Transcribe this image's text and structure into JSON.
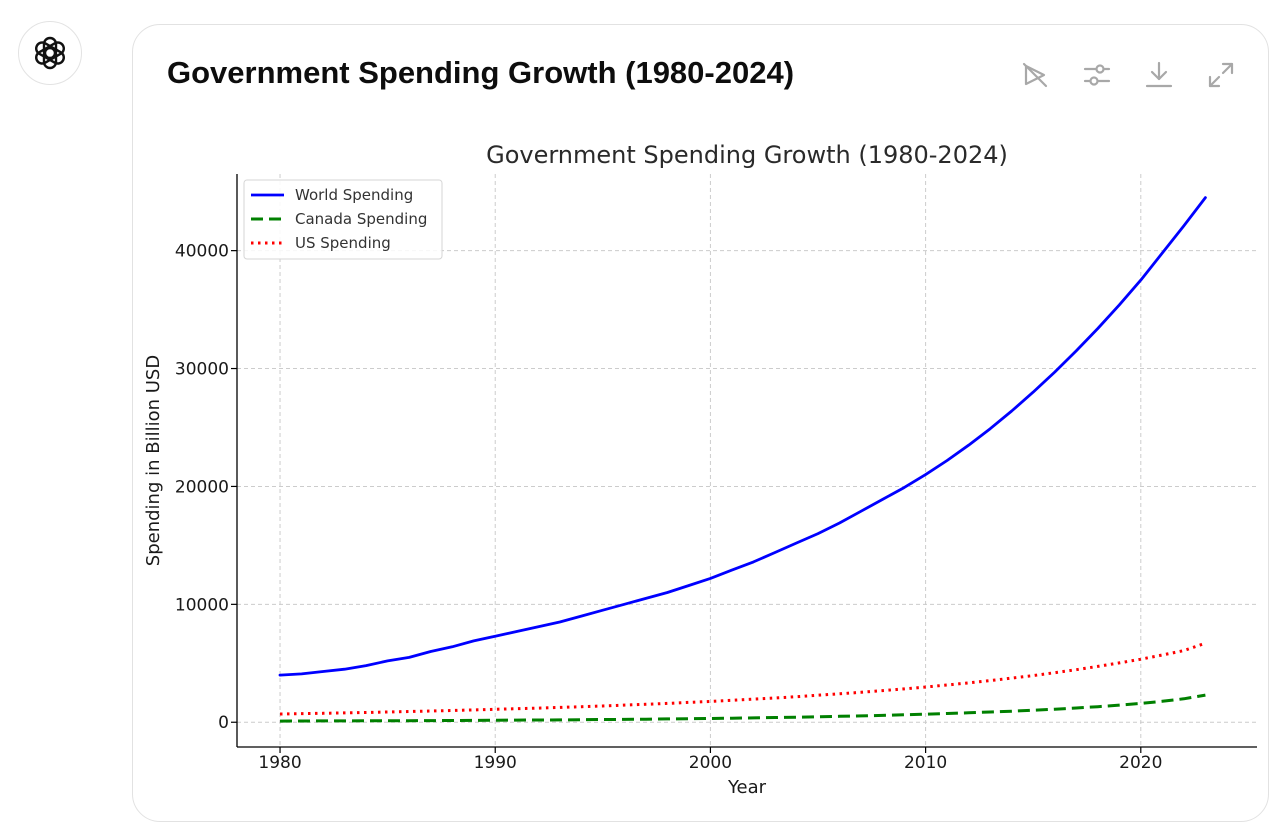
{
  "header": {
    "title": "Government Spending Growth (1980-2024)"
  },
  "toolbar": {
    "icons": [
      "unpin-icon",
      "sliders-icon",
      "download-icon",
      "expand-icon"
    ]
  },
  "colors": {
    "world": "#0000ff",
    "canada": "#008000",
    "us": "#ff0000",
    "grid": "#cccccc"
  },
  "chart_data": {
    "type": "line",
    "title": "Government Spending Growth (1980-2024)",
    "xlabel": "Year",
    "ylabel": "Spending in Billion USD",
    "xlim": [
      1978,
      2025.4
    ],
    "ylim": [
      -2100,
      46500
    ],
    "xticks": [
      1980,
      1990,
      2000,
      2010,
      2020
    ],
    "yticks": [
      0,
      10000,
      20000,
      30000,
      40000
    ],
    "grid": true,
    "legend_position": "top-left",
    "x": [
      1980,
      1981,
      1982,
      1983,
      1984,
      1985,
      1986,
      1987,
      1988,
      1989,
      1990,
      1991,
      1992,
      1993,
      1994,
      1995,
      1996,
      1997,
      1998,
      1999,
      2000,
      2001,
      2002,
      2003,
      2004,
      2005,
      2006,
      2007,
      2008,
      2009,
      2010,
      2011,
      2012,
      2013,
      2014,
      2015,
      2016,
      2017,
      2018,
      2019,
      2020,
      2021,
      2022,
      2023
    ],
    "series": [
      {
        "name": "World Spending",
        "style": "solid",
        "values": [
          4000,
          4100,
          4300,
          4500,
          4800,
          5200,
          5500,
          6000,
          6400,
          6900,
          7300,
          7700,
          8100,
          8500,
          9000,
          9500,
          10000,
          10500,
          11000,
          11600,
          12200,
          12900,
          13600,
          14400,
          15200,
          16000,
          16900,
          17900,
          18900,
          19900,
          21000,
          22200,
          23500,
          24900,
          26400,
          28000,
          29700,
          31500,
          33400,
          35400,
          37500,
          39800,
          42100,
          44500
        ]
      },
      {
        "name": "Canada Spending",
        "style": "dashed",
        "values": [
          100,
          105,
          110,
          115,
          120,
          125,
          130,
          140,
          150,
          160,
          170,
          180,
          190,
          200,
          215,
          230,
          245,
          260,
          280,
          300,
          320,
          345,
          370,
          400,
          430,
          465,
          500,
          540,
          580,
          630,
          680,
          740,
          800,
          870,
          940,
          1020,
          1110,
          1210,
          1320,
          1450,
          1600,
          1780,
          1990,
          2300
        ]
      },
      {
        "name": "US Spending",
        "style": "dotted",
        "values": [
          700,
          730,
          760,
          790,
          830,
          870,
          910,
          950,
          1000,
          1050,
          1100,
          1150,
          1200,
          1260,
          1320,
          1380,
          1450,
          1520,
          1600,
          1680,
          1770,
          1860,
          1960,
          2060,
          2170,
          2290,
          2410,
          2540,
          2680,
          2830,
          2990,
          3160,
          3340,
          3530,
          3740,
          3960,
          4200,
          4460,
          4740,
          5030,
          5350,
          5700,
          6080,
          6700
        ]
      }
    ]
  }
}
